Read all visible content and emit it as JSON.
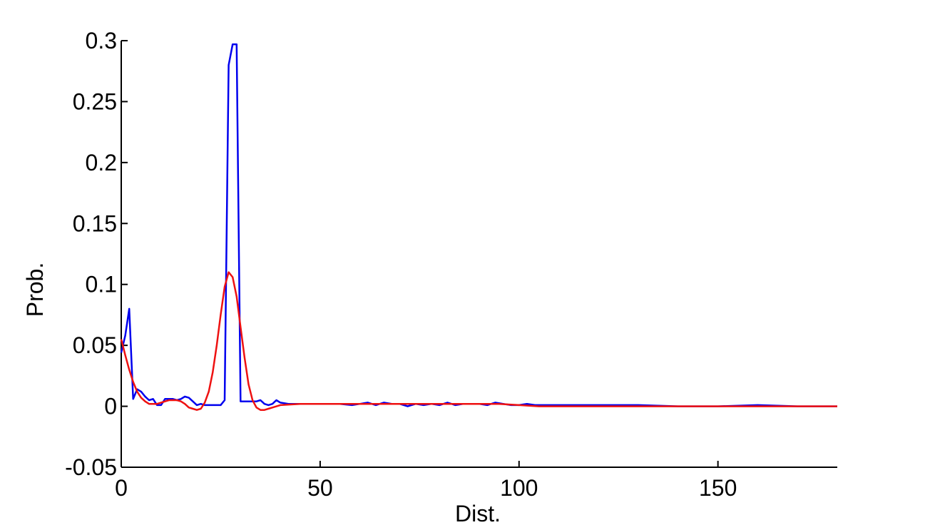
{
  "chart_data": {
    "type": "line",
    "title": "",
    "xlabel": "Dist.",
    "ylabel": "Prob.",
    "xlim": [
      0,
      180
    ],
    "ylim": [
      -0.05,
      0.3
    ],
    "xticks": [
      0,
      50,
      100,
      150
    ],
    "xtick_labels": [
      "0",
      "50",
      "100",
      "150"
    ],
    "yticks": [
      -0.05,
      0,
      0.05,
      0.1,
      0.15,
      0.2,
      0.25,
      0.3
    ],
    "ytick_labels": [
      "-0.05",
      "0",
      "0.05",
      "0.1",
      "0.15",
      "0.2",
      "0.25",
      "0.3"
    ],
    "grid": false,
    "legend": "none",
    "series": [
      {
        "color": "#0000ee",
        "x": [
          0,
          1,
          2,
          3,
          4,
          5,
          6,
          7,
          8,
          9,
          10,
          11,
          12,
          13,
          14,
          15,
          16,
          17,
          18,
          19,
          20,
          21,
          22,
          23,
          24,
          25,
          26,
          27,
          28,
          29,
          30,
          31,
          32,
          33,
          34,
          35,
          36,
          37,
          38,
          39,
          40,
          42,
          45,
          50,
          55,
          58,
          60,
          62,
          64,
          66,
          68,
          70,
          72,
          74,
          76,
          78,
          80,
          82,
          84,
          86,
          88,
          90,
          92,
          94,
          96,
          98,
          100,
          102,
          104,
          106,
          110,
          115,
          120,
          125,
          130,
          140,
          150,
          160,
          170,
          180
        ],
        "y": [
          0.044,
          0.058,
          0.08,
          0.006,
          0.014,
          0.012,
          0.008,
          0.005,
          0.006,
          0.001,
          0.001,
          0.006,
          0.006,
          0.006,
          0.005,
          0.006,
          0.008,
          0.007,
          0.004,
          0.001,
          0.002,
          0.001,
          0.001,
          0.001,
          0.001,
          0.001,
          0.005,
          0.28,
          0.297,
          0.297,
          0.004,
          0.004,
          0.004,
          0.004,
          0.004,
          0.005,
          0.002,
          0.001,
          0.002,
          0.005,
          0.003,
          0.002,
          0.002,
          0.002,
          0.002,
          0.001,
          0.002,
          0.003,
          0.001,
          0.003,
          0.002,
          0.002,
          0.0,
          0.002,
          0.001,
          0.002,
          0.001,
          0.003,
          0.001,
          0.002,
          0.002,
          0.002,
          0.001,
          0.003,
          0.002,
          0.001,
          0.001,
          0.002,
          0.001,
          0.001,
          0.001,
          0.001,
          0.001,
          0.001,
          0.001,
          0.0,
          0.0,
          0.001,
          0.0,
          0.0
        ]
      },
      {
        "color": "#ee1111",
        "x": [
          0,
          1,
          2,
          3,
          4,
          5,
          6,
          7,
          8,
          9,
          10,
          11,
          12,
          13,
          14,
          15,
          16,
          17,
          18,
          19,
          20,
          21,
          22,
          23,
          24,
          25,
          26,
          27,
          28,
          29,
          30,
          31,
          32,
          33,
          34,
          35,
          36,
          37,
          38,
          40,
          45,
          50,
          55,
          60,
          65,
          70,
          75,
          80,
          85,
          90,
          95,
          100,
          105,
          110,
          120,
          130,
          140,
          150,
          160,
          170,
          180
        ],
        "y": [
          0.055,
          0.042,
          0.03,
          0.02,
          0.012,
          0.007,
          0.004,
          0.002,
          0.002,
          0.002,
          0.003,
          0.004,
          0.005,
          0.005,
          0.005,
          0.004,
          0.002,
          -0.001,
          -0.002,
          -0.003,
          -0.002,
          0.003,
          0.012,
          0.028,
          0.05,
          0.075,
          0.098,
          0.11,
          0.106,
          0.09,
          0.065,
          0.04,
          0.018,
          0.005,
          -0.001,
          -0.003,
          -0.003,
          -0.002,
          -0.001,
          0.001,
          0.002,
          0.002,
          0.002,
          0.002,
          0.002,
          0.002,
          0.002,
          0.002,
          0.002,
          0.002,
          0.002,
          0.001,
          0.0,
          0.0,
          0.0,
          0.0,
          0.0,
          0.0,
          0.0,
          0.0,
          0.0
        ]
      }
    ]
  }
}
